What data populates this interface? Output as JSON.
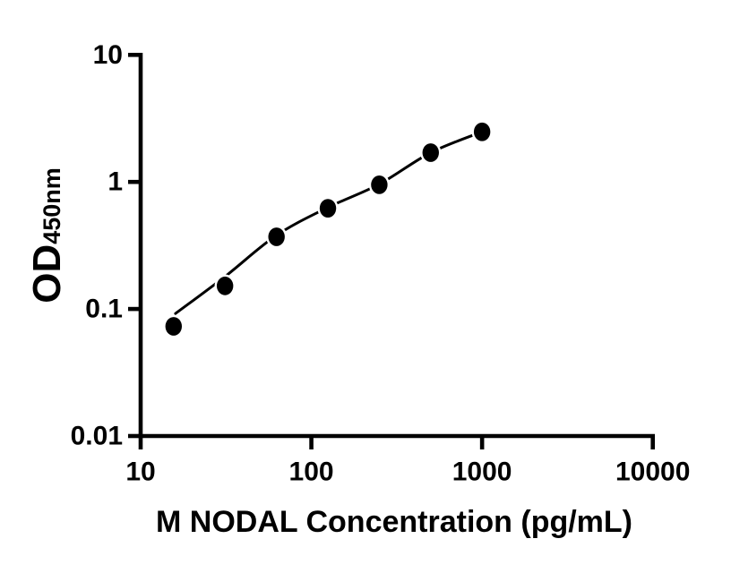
{
  "figure": {
    "background": "#ffffff"
  },
  "chart_data": {
    "type": "scatter",
    "subtype": "elisa-standard-curve",
    "title": "",
    "xlabel": "M NODAL Concentration (pg/mL)",
    "ylabel_main": "OD",
    "ylabel_sub": "450nm",
    "x_scale": "log10",
    "y_scale": "log10",
    "xlim": [
      10,
      10000
    ],
    "ylim": [
      0.01,
      10
    ],
    "x_ticks": [
      10,
      100,
      1000,
      10000
    ],
    "x_tick_labels": [
      "10",
      "100",
      "1000",
      "10000"
    ],
    "y_ticks": [
      10,
      1,
      0.1,
      0.01
    ],
    "y_tick_labels": [
      "10",
      "1",
      "0.1",
      "0.01"
    ],
    "grid": false,
    "legend": "none",
    "series": [
      {
        "name": "M NODAL standard",
        "marker": "filled-circle",
        "color": "#000000",
        "x": [
          15.6,
          31.2,
          62.5,
          125,
          250,
          500,
          1000
        ],
        "y": [
          0.073,
          0.152,
          0.37,
          0.62,
          0.95,
          1.7,
          2.48
        ]
      }
    ],
    "fit_curve": {
      "name": "fit-line",
      "color": "#000000",
      "x": [
        16,
        31.2,
        62.5,
        125,
        250,
        500,
        1000
      ],
      "y": [
        0.092,
        0.18,
        0.38,
        0.63,
        0.96,
        1.7,
        2.48
      ]
    },
    "colors": {
      "axis": "#000000",
      "marker": "#000000",
      "curve": "#000000",
      "background": "#ffffff"
    }
  }
}
